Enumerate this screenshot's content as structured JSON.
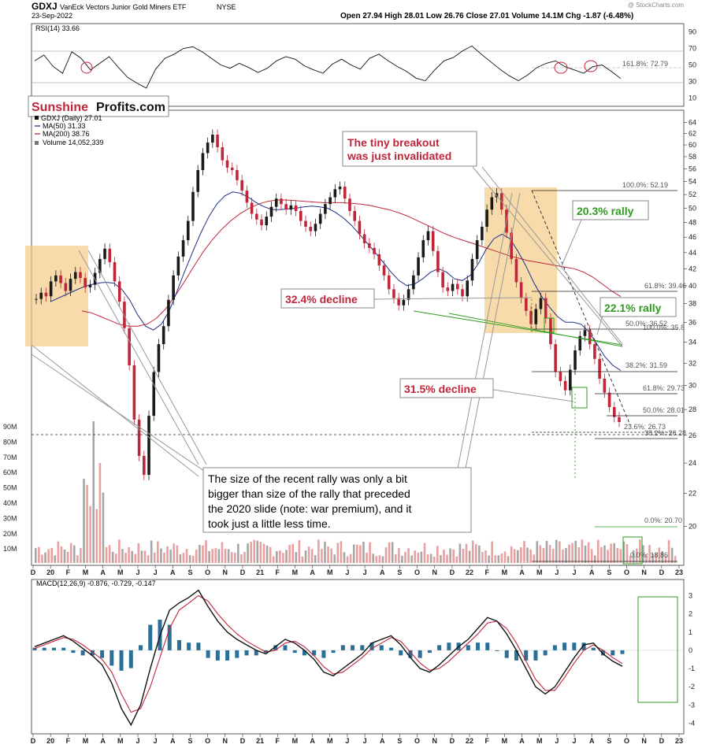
{
  "header": {
    "symbol": "GDXJ",
    "name": "VanEck Vectors Junior Gold Miners ETF",
    "exchange": "NYSE",
    "date": "23-Sep-2022",
    "watermark": "@ StockCharts.com",
    "ohlc": "Open 27.94  High 28.01  Low 26.76  Close 27.01  Volume 14.1M  Chg -1.87 (-6.48%)"
  },
  "rsi": {
    "title": "RSI(14) 33.66",
    "ticks": [
      "90",
      "70",
      "50",
      "30",
      "10"
    ],
    "fib_label": "161.8%: 72.79"
  },
  "price": {
    "legend": [
      "GDXJ (Daily) 27.01",
      "MA(50) 31.33",
      "MA(200) 38.76",
      "Volume 14,052,339"
    ],
    "ticks": [
      "64",
      "62",
      "60",
      "58",
      "56",
      "54",
      "52",
      "50",
      "48",
      "46",
      "44",
      "42",
      "40",
      "38",
      "36",
      "34",
      "32",
      "30",
      "28",
      "26",
      "24",
      "22",
      "20"
    ],
    "volume_ticks": [
      "90M",
      "80M",
      "70M",
      "60M",
      "50M",
      "40M",
      "30M",
      "20M",
      "10M"
    ],
    "logo": {
      "part1": "Sunshine",
      "part2": "Profits.com"
    }
  },
  "fib_levels": [
    {
      "label": "100.0%: 52.19"
    },
    {
      "label": "61.8%: 39.46"
    },
    {
      "label": "50.0%: 36.52"
    },
    {
      "label": "100.0%: 35.8"
    },
    {
      "label": "38.2%: 31.59"
    },
    {
      "label": "61.8%: 29.73"
    },
    {
      "label": "50.0%: 28.01"
    },
    {
      "label": "23.6%: 26.73"
    },
    {
      "label": "38.2%: 26.28"
    },
    {
      "label": "0.0%: 20.70"
    },
    {
      "label": "0.0%: 18.86"
    }
  ],
  "annotations": {
    "tiny_breakout": [
      "The tiny breakout",
      "was just invalidated"
    ],
    "rally_203": "20.3% rally",
    "rally_221": "22.1% rally",
    "decline_324": "32.4% decline",
    "decline_315": "31.5% decline",
    "note": [
      "The size of the recent rally was only a bit",
      "bigger than size of the rally that preceded",
      "the 2020 slide (note: war premium), and it",
      "took just a little less time."
    ]
  },
  "x_axis": [
    "D",
    "20",
    "F",
    "M",
    "A",
    "M",
    "J",
    "J",
    "A",
    "S",
    "O",
    "N",
    "D",
    "21",
    "F",
    "M",
    "A",
    "M",
    "J",
    "J",
    "A",
    "S",
    "O",
    "N",
    "D",
    "22",
    "F",
    "M",
    "A",
    "M",
    "J",
    "J",
    "A",
    "S",
    "O",
    "N",
    "D",
    "23"
  ],
  "macd": {
    "title": "MACD(12,26,9) -0.876, -0.729, -0.147",
    "ticks": [
      "3",
      "2",
      "1",
      "0",
      "-1",
      "-2",
      "-3",
      "-4"
    ]
  },
  "colors": {
    "candle_up": "#1a1a1a",
    "candle_down": "#c0263a",
    "ma50": "#1f2f8a",
    "ma200": "#c0263a",
    "highlight": "#f5c77e",
    "green": "#2e9b1f",
    "red_text": "#c0263a",
    "volume": "#e08080",
    "histogram": "#2a6f97"
  },
  "chart_data": {
    "type": "candlestick",
    "closes": [
      38.5,
      39.2,
      38.8,
      40.5,
      41.2,
      40.3,
      39.4,
      40.8,
      41.6,
      40.9,
      39.8,
      40.1,
      41.5,
      43.2,
      44.5,
      42.8,
      40.5,
      38.2,
      35.4,
      31.8,
      27.2,
      24.5,
      23.2,
      27.5,
      31.2,
      33.8,
      35.6,
      38.4,
      41.2,
      43.5,
      45.6,
      48.2,
      52.4,
      55.8,
      58.6,
      60.4,
      61.8,
      59.6,
      57.4,
      56.2,
      55.8,
      54.2,
      52.6,
      50.8,
      49.2,
      48.4,
      47.6,
      48.8,
      50.2,
      51.4,
      50.6,
      49.8,
      50.4,
      49.6,
      48.2,
      47.4,
      46.8,
      47.8,
      49.2,
      50.6,
      51.6,
      52.8,
      53.2,
      51.4,
      49.6,
      48.2,
      46.4,
      45.2,
      44.6,
      43.8,
      42.4,
      41.2,
      39.6,
      38.6,
      37.8,
      38.4,
      39.6,
      41.2,
      43.4,
      45.6,
      46.8,
      44.2,
      41.6,
      39.8,
      39.4,
      40.2,
      39.6,
      38.8,
      40.6,
      43.2,
      45.6,
      47.4,
      49.8,
      51.6,
      52.2,
      49.8,
      46.6,
      43.2,
      40.4,
      38.6,
      37.2,
      35.8,
      37.4,
      38.6,
      36.4,
      33.8,
      31.2,
      30.4,
      29.6,
      31.4,
      33.2,
      34.6,
      35.2,
      33.8,
      32.4,
      30.6,
      29.4,
      28.2,
      27.4,
      27.01
    ],
    "ma50": [
      38.2,
      38.6,
      39.0,
      39.4,
      39.8,
      40.1,
      40.3,
      40.4,
      40.3,
      39.6,
      38.4,
      36.8,
      35.6,
      35.2,
      35.8,
      37.2,
      39.4,
      41.8,
      44.2,
      46.6,
      48.8,
      50.6,
      51.8,
      52.4,
      52.2,
      51.6,
      50.8,
      50.2,
      49.8,
      49.8,
      49.9,
      50.0,
      50.2,
      50.3,
      50.2,
      50.0,
      49.4,
      48.6,
      47.6,
      46.4,
      45.2,
      44.0,
      42.8,
      41.6,
      40.6,
      40.0,
      40.2,
      40.8,
      41.6,
      42.0,
      41.6,
      40.8,
      40.6,
      41.2,
      42.6,
      44.4,
      45.8,
      46.4,
      45.8,
      44.2,
      42.4,
      40.4,
      38.8,
      37.6,
      36.6,
      36.0,
      36.0,
      35.8,
      35.0,
      33.8,
      32.6,
      31.8,
      31.33
    ],
    "ma200": [
      37.2,
      37.0,
      36.6,
      36.2,
      35.8,
      35.6,
      35.6,
      35.8,
      36.4,
      37.4,
      38.8,
      40.4,
      42.2,
      44.0,
      45.6,
      47.0,
      48.2,
      49.2,
      50.0,
      50.6,
      51.0,
      51.2,
      51.2,
      51.1,
      51.0,
      50.9,
      50.8,
      50.8,
      50.8,
      50.7,
      50.6,
      50.4,
      50.1,
      49.8,
      49.4,
      48.9,
      48.3,
      47.7,
      47.1,
      46.5,
      46.0,
      45.6,
      45.2,
      44.8,
      44.4,
      44.0,
      43.6,
      43.3,
      43.0,
      42.8,
      42.6,
      42.4,
      42.2,
      42.0,
      41.6,
      41.0,
      40.2,
      39.4,
      38.76
    ],
    "rsi": [
      55,
      62,
      48,
      40,
      66,
      58,
      44,
      52,
      60,
      47,
      35,
      28,
      22,
      45,
      58,
      63,
      70,
      72,
      66,
      58,
      50,
      46,
      52,
      47,
      41,
      46,
      55,
      60,
      57,
      49,
      44,
      40,
      51,
      57,
      50,
      45,
      58,
      63,
      55,
      48,
      42,
      34,
      31,
      44,
      55,
      59,
      67,
      73,
      63,
      54,
      45,
      37,
      31,
      38,
      47,
      52,
      55,
      48,
      44,
      40,
      48,
      50,
      42,
      33.66
    ],
    "macd": [
      0.2,
      0.4,
      0.6,
      0.8,
      0.5,
      0.1,
      -0.3,
      -0.8,
      -1.8,
      -3.2,
      -4.1,
      -3.0,
      -1.0,
      0.8,
      2.2,
      2.6,
      2.9,
      3.3,
      2.4,
      1.6,
      1.0,
      0.6,
      0.3,
      0.0,
      -0.2,
      0.2,
      0.6,
      0.4,
      0.0,
      -0.5,
      -1.2,
      -1.4,
      -1.0,
      -0.6,
      -0.2,
      0.4,
      0.6,
      0.8,
      0.3,
      -0.4,
      -1.0,
      -1.2,
      -0.8,
      -0.3,
      0.2,
      0.6,
      1.2,
      1.8,
      1.6,
      0.9,
      0.0,
      -1.0,
      -2.0,
      -2.4,
      -2.0,
      -1.2,
      -0.4,
      0.3,
      0.4,
      -0.2,
      -0.6,
      -0.876
    ],
    "signal": [
      0.1,
      0.3,
      0.5,
      0.7,
      0.6,
      0.3,
      -0.1,
      -0.5,
      -1.2,
      -2.4,
      -3.4,
      -3.2,
      -2.0,
      -0.4,
      1.2,
      2.2,
      2.6,
      3.0,
      2.7,
      2.0,
      1.4,
      0.9,
      0.5,
      0.2,
      -0.1,
      0.0,
      0.4,
      0.5,
      0.2,
      -0.3,
      -0.9,
      -1.3,
      -1.2,
      -0.8,
      -0.4,
      0.1,
      0.4,
      0.7,
      0.5,
      -0.1,
      -0.7,
      -1.1,
      -1.0,
      -0.6,
      -0.1,
      0.4,
      0.9,
      1.5,
      1.6,
      1.2,
      0.4,
      -0.6,
      -1.6,
      -2.2,
      -2.2,
      -1.5,
      -0.7,
      0.0,
      0.3,
      0.0,
      -0.4,
      -0.729
    ],
    "price_range": [
      18,
      66
    ],
    "rsi_range": [
      0,
      100
    ],
    "macd_range": [
      -4.5,
      3.8
    ],
    "price_scale": "log"
  }
}
